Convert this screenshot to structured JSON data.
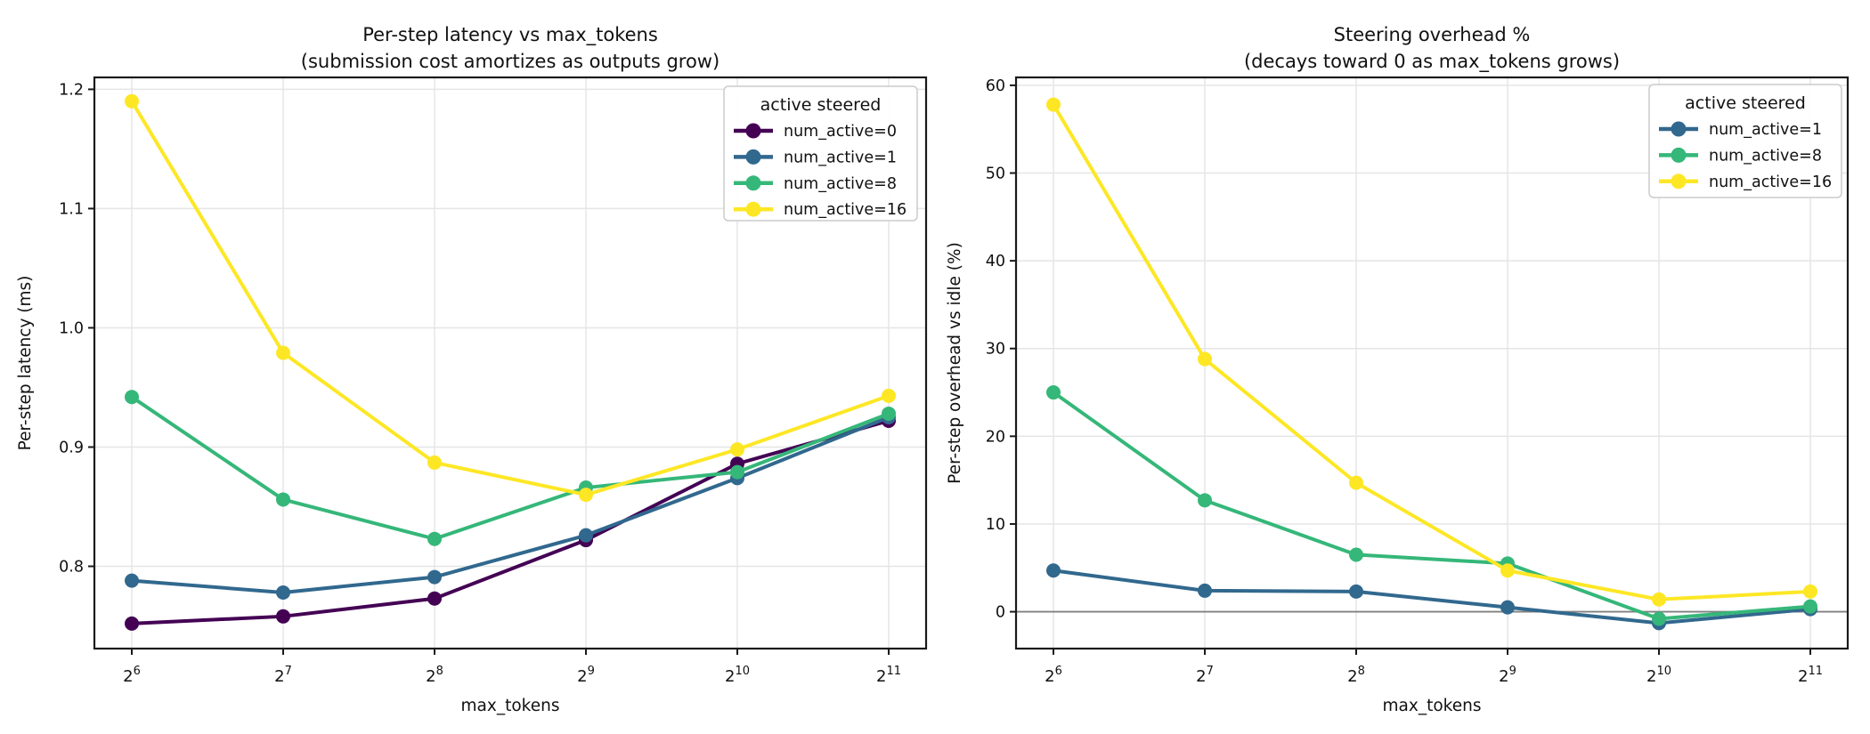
{
  "figure": {
    "background": "#ffffff",
    "text_color": "#111111",
    "grid_color": "#e5e5e5",
    "spine_color": "#1a1a1a",
    "zero_line_color": "#808080"
  },
  "chart_data": [
    {
      "type": "line",
      "title": "Per-step latency vs max_tokens",
      "subtitle": "(submission cost amortizes as outputs grow)",
      "xlabel": "max_tokens",
      "ylabel": "Per-step latency (ms)",
      "x_tick_labels": [
        "2^6",
        "2^7",
        "2^8",
        "2^9",
        "2^10",
        "2^11"
      ],
      "x_values": [
        64,
        128,
        256,
        512,
        1024,
        2048
      ],
      "ylim": [
        0.731,
        1.21
      ],
      "yticks": [
        0.8,
        0.9,
        1.0,
        1.1,
        1.2
      ],
      "ytick_labels": [
        "0.8",
        "0.9",
        "1.0",
        "1.1",
        "1.2"
      ],
      "grid": true,
      "zero_line": false,
      "legend_title": "active steered",
      "legend_position": "upper right",
      "series": [
        {
          "name": "num_active=0",
          "color": "#440154",
          "values": [
            0.752,
            0.758,
            0.773,
            0.822,
            0.886,
            0.922
          ]
        },
        {
          "name": "num_active=1",
          "color": "#31688e",
          "values": [
            0.788,
            0.778,
            0.791,
            0.826,
            0.874,
            0.925
          ]
        },
        {
          "name": "num_active=8",
          "color": "#35b779",
          "values": [
            0.942,
            0.856,
            0.823,
            0.866,
            0.879,
            0.928
          ]
        },
        {
          "name": "num_active=16",
          "color": "#fde725",
          "values": [
            1.19,
            0.979,
            0.887,
            0.86,
            0.898,
            0.943
          ]
        }
      ]
    },
    {
      "type": "line",
      "title": "Steering overhead %",
      "subtitle": "(decays toward 0 as max_tokens grows)",
      "xlabel": "max_tokens",
      "ylabel": "Per-step overhead vs idle (%)",
      "x_tick_labels": [
        "2^6",
        "2^7",
        "2^8",
        "2^9",
        "2^10",
        "2^11"
      ],
      "x_values": [
        64,
        128,
        256,
        512,
        1024,
        2048
      ],
      "ylim": [
        -4.2,
        60.9
      ],
      "yticks": [
        0,
        10,
        20,
        30,
        40,
        50,
        60
      ],
      "ytick_labels": [
        "0",
        "10",
        "20",
        "30",
        "40",
        "50",
        "60"
      ],
      "grid": true,
      "zero_line": true,
      "legend_title": "active steered",
      "legend_position": "upper right",
      "series": [
        {
          "name": "num_active=1",
          "color": "#31688e",
          "values": [
            4.7,
            2.4,
            2.3,
            0.5,
            -1.3,
            0.3
          ]
        },
        {
          "name": "num_active=8",
          "color": "#35b779",
          "values": [
            25.0,
            12.7,
            6.5,
            5.5,
            -0.8,
            0.6
          ]
        },
        {
          "name": "num_active=16",
          "color": "#fde725",
          "values": [
            57.8,
            28.8,
            14.7,
            4.7,
            1.4,
            2.3
          ]
        }
      ]
    }
  ]
}
